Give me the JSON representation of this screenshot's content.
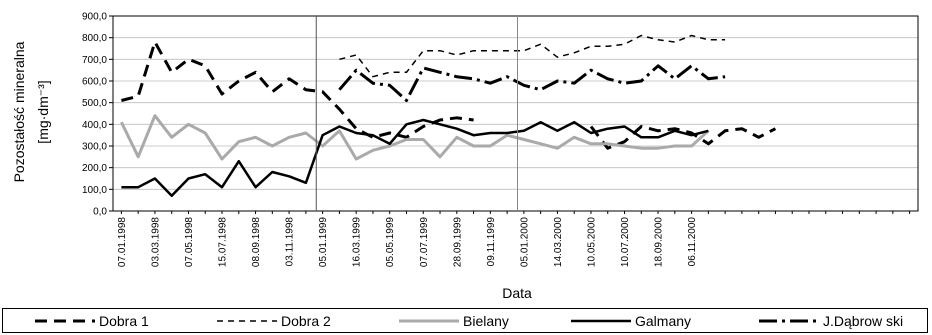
{
  "chart_data": {
    "type": "line",
    "title": "",
    "xlabel": "Data",
    "ylabel_line1": "Pozostałość mineralna",
    "ylabel_line2": "[mg·dm⁻³]",
    "ylim": [
      0,
      900
    ],
    "y_ticks": [
      "0,0",
      "100,0",
      "200,0",
      "300,0",
      "400,0",
      "500,0",
      "600,0",
      "700,0",
      "800,0",
      "900,0"
    ],
    "x_tick_labels": [
      "07.01.1998",
      "03.03.1998",
      "07.05.1998",
      "15.07.1998",
      "08.09.1998",
      "03.11.1998",
      "05.01.1999",
      "16.03.1999",
      "05.05.1999",
      "07.07.1999",
      "28.09.1999",
      "09.11.1999",
      "05.01.2000",
      "14.03.2000",
      "10.05.2000",
      "10.07.2000",
      "18.09.2000",
      "06.11.2000"
    ],
    "x_count": 48,
    "grid": "horizontal",
    "legend_position": "bottom",
    "series": [
      {
        "name": "Dobra 1",
        "color": "#000000",
        "dash": "long-dash",
        "values": [
          510,
          530,
          780,
          640,
          700,
          670,
          540,
          600,
          640,
          550,
          610,
          560,
          550,
          470,
          380,
          340,
          360,
          340,
          390,
          420,
          430,
          420,
          null,
          null,
          null,
          null,
          null,
          null,
          390,
          290,
          320,
          390,
          370,
          380,
          360,
          310,
          370,
          380,
          340,
          380,
          null,
          null,
          null,
          null,
          null,
          null,
          null,
          null
        ]
      },
      {
        "name": "Dobra 2",
        "color": "#000000",
        "dash": "short-dash",
        "values": [
          null,
          null,
          null,
          null,
          null,
          null,
          null,
          null,
          null,
          null,
          null,
          null,
          null,
          700,
          720,
          620,
          640,
          640,
          740,
          740,
          720,
          740,
          740,
          740,
          740,
          770,
          710,
          730,
          760,
          760,
          770,
          810,
          790,
          780,
          810,
          790,
          790,
          null,
          null,
          null,
          null,
          null,
          null,
          null,
          null,
          null,
          null,
          null
        ]
      },
      {
        "name": "Bielany",
        "color": "#aaaaaa",
        "dash": "solid",
        "values": [
          410,
          250,
          440,
          340,
          400,
          360,
          240,
          320,
          340,
          300,
          340,
          360,
          300,
          370,
          240,
          280,
          300,
          330,
          330,
          250,
          340,
          300,
          300,
          350,
          330,
          310,
          290,
          340,
          310,
          310,
          300,
          290,
          290,
          300,
          300,
          370,
          null,
          null,
          null,
          null,
          null,
          null,
          null,
          null,
          null,
          null,
          null,
          null
        ]
      },
      {
        "name": "Galmany",
        "color": "#000000",
        "dash": "solid",
        "values": [
          110,
          110,
          150,
          70,
          150,
          170,
          110,
          230,
          110,
          180,
          160,
          130,
          350,
          390,
          360,
          350,
          310,
          400,
          420,
          400,
          380,
          350,
          360,
          360,
          370,
          410,
          370,
          410,
          360,
          380,
          390,
          340,
          340,
          370,
          350,
          370,
          null,
          null,
          null,
          null,
          null,
          null,
          null,
          null,
          null,
          null,
          null,
          null
        ]
      },
      {
        "name": "J.Dąbrow ski",
        "color": "#000000",
        "dash": "long-dash-dot",
        "values": [
          null,
          null,
          null,
          null,
          null,
          null,
          null,
          null,
          null,
          null,
          null,
          null,
          null,
          560,
          650,
          590,
          580,
          510,
          660,
          640,
          620,
          610,
          590,
          620,
          580,
          560,
          600,
          590,
          650,
          610,
          590,
          600,
          670,
          610,
          670,
          610,
          620,
          null,
          null,
          null,
          null,
          null,
          null,
          null,
          null,
          null,
          null,
          null
        ]
      }
    ]
  }
}
